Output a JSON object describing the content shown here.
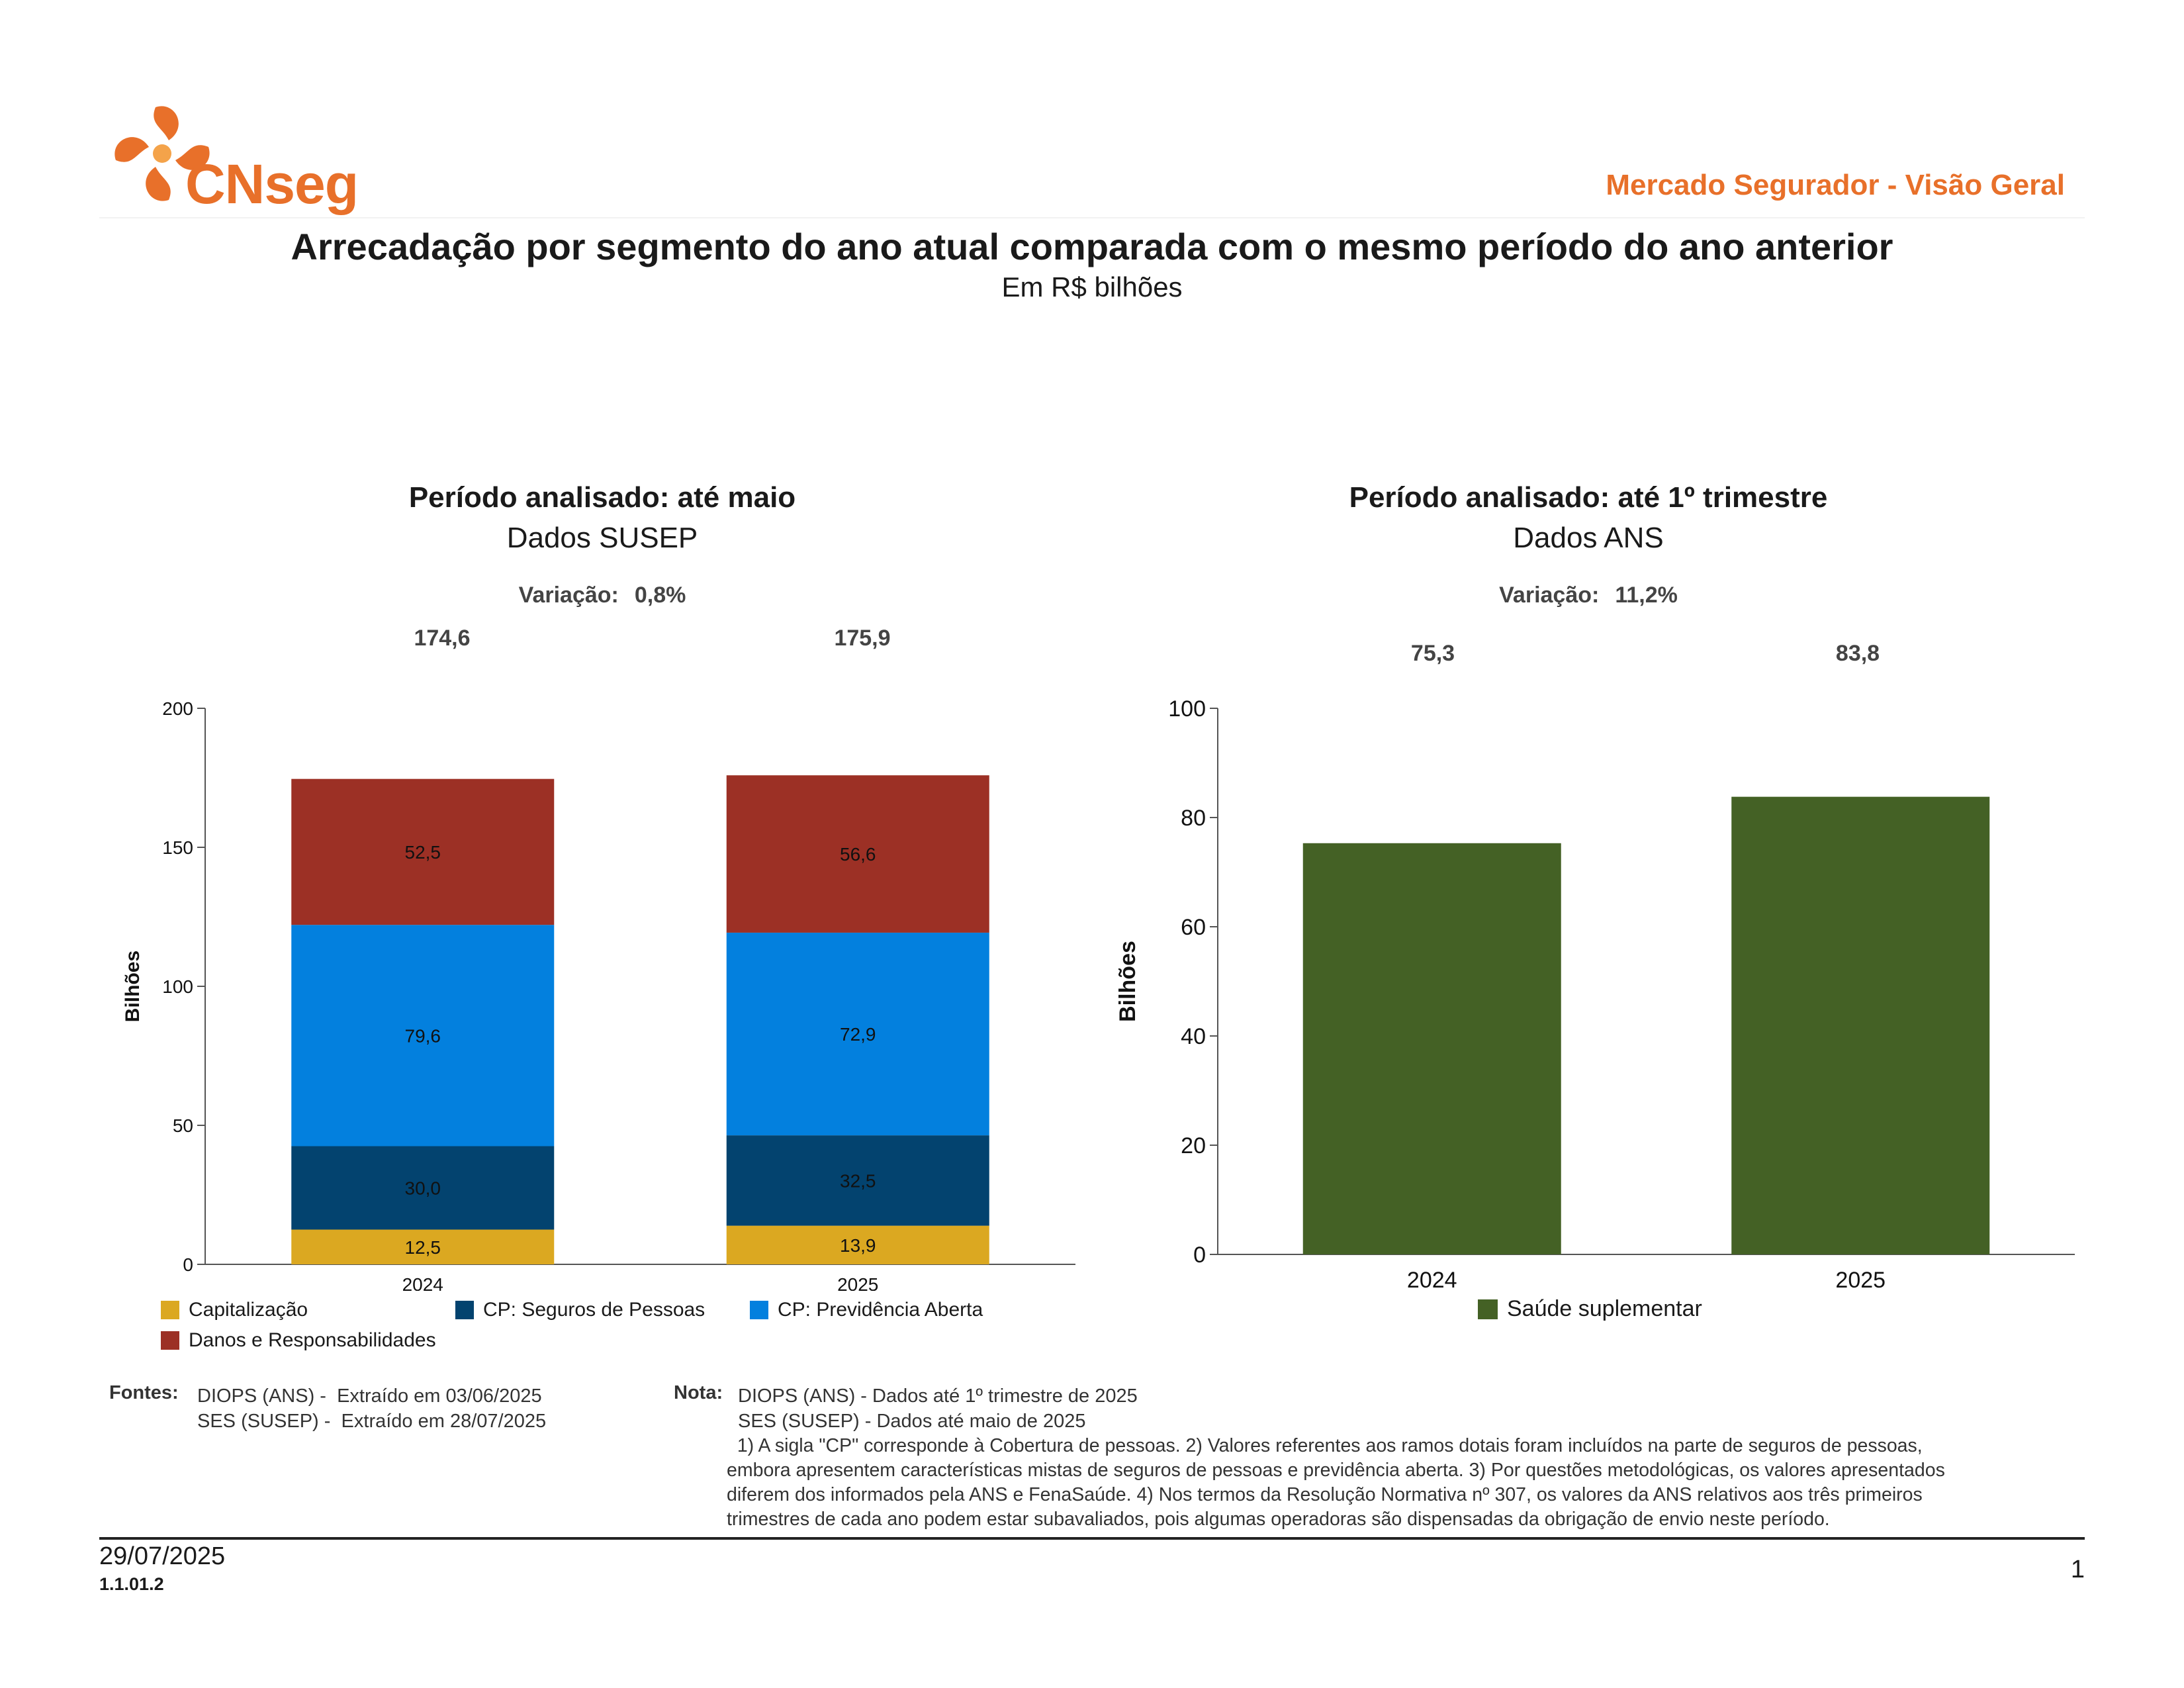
{
  "header": {
    "logo_text": "CNseg",
    "report_title": "Mercado Segurador - Visão Geral"
  },
  "title": "Arrecadação por segmento do ano atual comparada com o mesmo período do ano anterior",
  "subtitle": "Em R$ bilhões",
  "colors": {
    "brand": "#e8702a",
    "capitalizacao": "#dba821",
    "seguros_pessoas": "#03436f",
    "previdencia": "#0380de",
    "danos": "#9c3025",
    "saude": "#446125"
  },
  "left_panel": {
    "period": "Período analisado: até maio",
    "source": "Dados SUSEP",
    "variation_label": "Variação:",
    "variation_value": "0,8%"
  },
  "right_panel": {
    "period": "Período analisado: até 1º trimestre",
    "source": "Dados ANS",
    "variation_label": "Variação:",
    "variation_value": "11,2%"
  },
  "chart_data": [
    {
      "type": "bar",
      "stacked": true,
      "categories": [
        "2024",
        "2025"
      ],
      "totals": [
        "174,6",
        "175,9"
      ],
      "ylabel": "Bilhões",
      "ylim": [
        0,
        200
      ],
      "yticks": [
        0,
        50,
        100,
        150,
        200
      ],
      "series": [
        {
          "name": "Capitalização",
          "values": [
            12.5,
            13.9
          ],
          "labels": [
            "12,5",
            "13,9"
          ],
          "color": "#dba821"
        },
        {
          "name": "CP: Seguros de Pessoas",
          "values": [
            30.0,
            32.5
          ],
          "labels": [
            "30,0",
            "32,5"
          ],
          "color": "#03436f"
        },
        {
          "name": "CP: Previdência Aberta",
          "values": [
            79.6,
            72.9
          ],
          "labels": [
            "79,6",
            "72,9"
          ],
          "color": "#0380de"
        },
        {
          "name": "Danos e Responsabilidades",
          "values": [
            52.5,
            56.6
          ],
          "labels": [
            "52,5",
            "56,6"
          ],
          "color": "#9c3025"
        }
      ],
      "legend": "bottom"
    },
    {
      "type": "bar",
      "categories": [
        "2024",
        "2025"
      ],
      "totals": [
        "75,3",
        "83,8"
      ],
      "ylabel": "Bilhões",
      "ylim": [
        0,
        100
      ],
      "yticks": [
        0,
        20,
        40,
        60,
        80,
        100
      ],
      "series": [
        {
          "name": "Saúde suplementar",
          "values": [
            75.3,
            83.8
          ],
          "color": "#446125"
        }
      ],
      "legend": "bottom"
    }
  ],
  "notes": {
    "fontes_label": "Fontes:",
    "fontes": [
      "DIOPS (ANS) -  Extraído em 03/06/2025",
      "SES (SUSEP) -  Extraído em 28/07/2025"
    ],
    "nota_label": "Nota:",
    "nota_lines": [
      "DIOPS (ANS) - Dados até 1º trimestre de 2025",
      "SES (SUSEP) - Dados até maio de 2025"
    ],
    "nota_text": [
      "  1) A sigla \"CP\" corresponde à Cobertura de pessoas. 2) Valores referentes aos ramos dotais foram incluídos na parte de seguros de pessoas,",
      "embora apresentem características mistas de seguros de pessoas e previdência aberta. 3) Por questões metodológicas, os valores apresentados",
      "diferem dos informados pela ANS e FenaSaúde. 4) Nos termos da Resolução Normativa nº 307, os valores da ANS relativos aos três primeiros",
      "trimestres de cada ano podem estar subavaliados, pois algumas operadoras são dispensadas da obrigação de envio neste período."
    ]
  },
  "footer": {
    "date": "29/07/2025",
    "code": "1.1.01.2",
    "page": "1"
  }
}
